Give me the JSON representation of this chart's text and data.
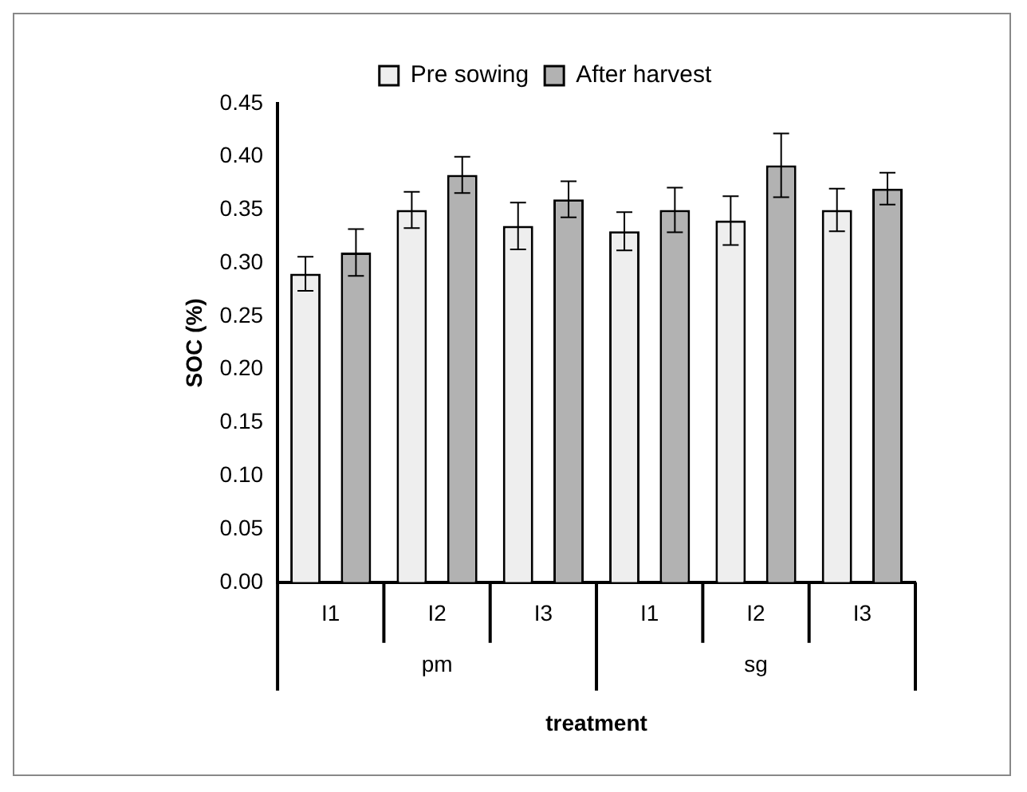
{
  "chart_data": {
    "type": "bar",
    "ylabel": "SOC (%)",
    "xlabel": "treatment",
    "categories": [
      "I1",
      "I2",
      "I3",
      "I1",
      "I2",
      "I3"
    ],
    "series": [
      {
        "name": "Pre sowing",
        "color": "#eeeeee",
        "values": [
          0.29,
          0.35,
          0.335,
          0.33,
          0.34,
          0.35
        ],
        "errors": [
          0.016,
          0.017,
          0.022,
          0.018,
          0.023,
          0.02
        ]
      },
      {
        "name": "After harvest",
        "color": "#b2b2b2",
        "values": [
          0.31,
          0.383,
          0.36,
          0.35,
          0.392,
          0.37
        ],
        "errors": [
          0.022,
          0.017,
          0.017,
          0.021,
          0.03,
          0.015
        ]
      }
    ],
    "annotations": [
      "pm",
      "sg"
    ],
    "ylim": [
      0,
      0.45
    ],
    "yticks": [
      {
        "value": 0,
        "label": "0.00"
      },
      {
        "value": 0.05,
        "label": "0.05"
      },
      {
        "value": 0.1,
        "label": "0.10"
      },
      {
        "value": 0.15,
        "label": "0.15"
      },
      {
        "value": 0.2,
        "label": "0.20"
      },
      {
        "value": 0.25,
        "label": "0.25"
      },
      {
        "value": 0.3,
        "label": "0.30"
      },
      {
        "value": 0.35,
        "label": "0.35"
      },
      {
        "value": 0.4,
        "label": "0.40"
      },
      {
        "value": 0.45,
        "label": "0.45"
      }
    ],
    "grid": false,
    "legend": "top"
  }
}
